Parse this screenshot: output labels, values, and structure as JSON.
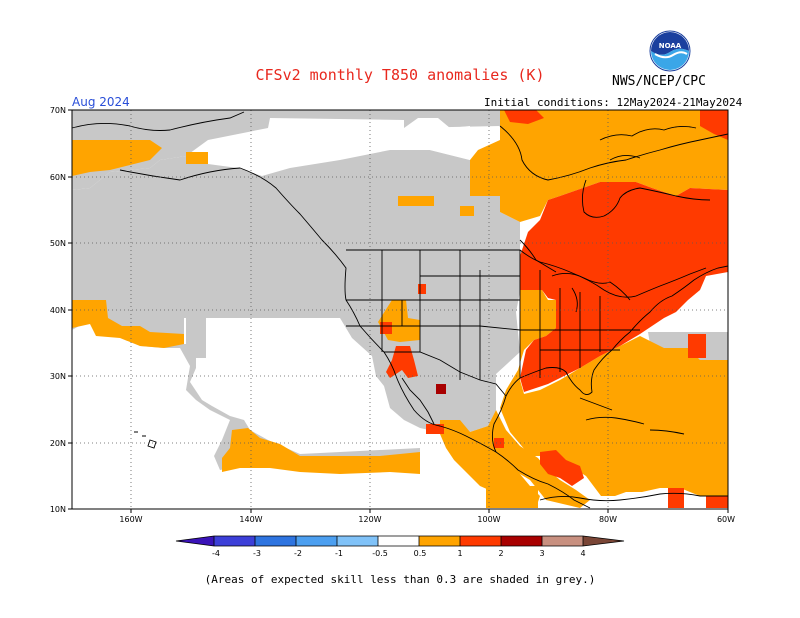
{
  "header": {
    "title": "CFSv2 monthly T850 anomalies (K)",
    "org": "NWS/NCEP/CPC",
    "period": "Aug 2024",
    "init_conditions": "Initial conditions: 12May2024-21May2024",
    "logo_text": "NOAA"
  },
  "axes": {
    "lat_labels": [
      "70N",
      "60N",
      "50N",
      "40N",
      "30N",
      "20N",
      "10N"
    ],
    "lon_labels": [
      "160W",
      "140W",
      "120W",
      "100W",
      "80W",
      "60W"
    ]
  },
  "colorbar": {
    "labels": [
      "-4",
      "-3",
      "-2",
      "-1",
      "-0.5",
      "0.5",
      "1",
      "2",
      "3",
      "4"
    ],
    "colors": [
      "#3a13b8",
      "#3c3fd8",
      "#2e74e0",
      "#4c9ff0",
      "#80c2f8",
      "#ffffff",
      "#ffa400",
      "#ff3a00",
      "#a80000",
      "#c89080",
      "#7a4636"
    ]
  },
  "legend_colors": {
    "skill_low": "#c8c8c8",
    "anom_0_5_to_1": "#ffa400",
    "anom_1_to_2": "#ff3a00",
    "anom_2_to_3": "#a80000"
  },
  "footnote": "(Areas of expected skill less than 0.3 are shaded in grey.)"
}
